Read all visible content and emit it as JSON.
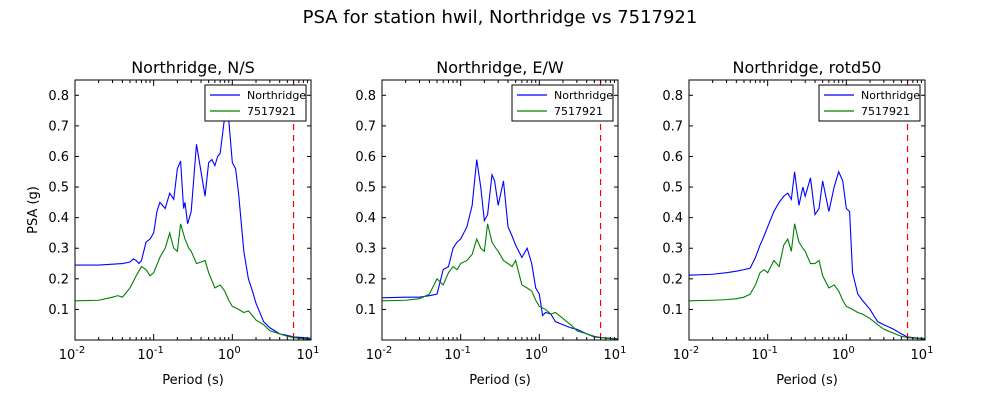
{
  "figure": {
    "suptitle": "PSA for station hwil, Northridge vs 7517921"
  },
  "colors": {
    "northridge": "#0000ff",
    "comparison": "#008000",
    "cutoff": "#ff0000"
  },
  "chart_data": [
    {
      "type": "line",
      "title": "Northridge, N/S",
      "xlabel": "Period (s)",
      "ylabel": "PSA (g)",
      "xscale": "log",
      "xlim": [
        0.01,
        10
      ],
      "ylim": [
        0,
        0.85
      ],
      "yticks": [
        0.1,
        0.2,
        0.3,
        0.4,
        0.5,
        0.6,
        0.7,
        0.8
      ],
      "xtick_labels": [
        "10",
        "10",
        "10",
        "10"
      ],
      "xtick_exponents": [
        "-2",
        "-1",
        "0",
        "1"
      ],
      "legend_position": "upper right",
      "cutoff_period": 6.0,
      "series": [
        {
          "name": "Northridge",
          "color": "#0000ff",
          "x": [
            0.01,
            0.02,
            0.03,
            0.04,
            0.05,
            0.055,
            0.06,
            0.065,
            0.07,
            0.08,
            0.09,
            0.1,
            0.11,
            0.12,
            0.14,
            0.16,
            0.18,
            0.2,
            0.22,
            0.24,
            0.25,
            0.27,
            0.3,
            0.35,
            0.4,
            0.45,
            0.5,
            0.55,
            0.6,
            0.65,
            0.7,
            0.8,
            0.9,
            1.0,
            1.1,
            1.2,
            1.4,
            1.6,
            1.8,
            2.0,
            2.5,
            3.0,
            4.0,
            5.0,
            6.0,
            8.0,
            10.0
          ],
          "y": [
            0.245,
            0.245,
            0.248,
            0.25,
            0.255,
            0.265,
            0.26,
            0.25,
            0.26,
            0.32,
            0.33,
            0.35,
            0.42,
            0.45,
            0.43,
            0.48,
            0.46,
            0.56,
            0.585,
            0.43,
            0.45,
            0.38,
            0.42,
            0.64,
            0.55,
            0.47,
            0.58,
            0.59,
            0.57,
            0.6,
            0.61,
            0.73,
            0.72,
            0.58,
            0.56,
            0.48,
            0.29,
            0.2,
            0.16,
            0.12,
            0.06,
            0.04,
            0.02,
            0.015,
            0.01,
            0.008,
            0.005
          ]
        },
        {
          "name": "7517921",
          "color": "#008000",
          "x": [
            0.01,
            0.02,
            0.03,
            0.035,
            0.04,
            0.05,
            0.06,
            0.07,
            0.08,
            0.09,
            0.1,
            0.12,
            0.14,
            0.16,
            0.18,
            0.2,
            0.22,
            0.25,
            0.28,
            0.3,
            0.35,
            0.4,
            0.45,
            0.5,
            0.6,
            0.7,
            0.8,
            0.9,
            1.0,
            1.2,
            1.4,
            1.6,
            1.8,
            2.0,
            2.5,
            3.0,
            4.0,
            5.0,
            6.0,
            8.0,
            10.0
          ],
          "y": [
            0.128,
            0.13,
            0.14,
            0.145,
            0.14,
            0.17,
            0.21,
            0.24,
            0.23,
            0.21,
            0.22,
            0.27,
            0.3,
            0.35,
            0.3,
            0.29,
            0.38,
            0.33,
            0.3,
            0.29,
            0.25,
            0.255,
            0.26,
            0.22,
            0.17,
            0.18,
            0.16,
            0.13,
            0.11,
            0.1,
            0.09,
            0.095,
            0.08,
            0.065,
            0.05,
            0.03,
            0.02,
            0.012,
            0.008,
            0.004,
            0.003
          ]
        }
      ]
    },
    {
      "type": "line",
      "title": "Northridge, E/W",
      "xlabel": "Period (s)",
      "ylabel": "",
      "xscale": "log",
      "xlim": [
        0.01,
        10
      ],
      "ylim": [
        0,
        0.85
      ],
      "yticks": [
        0.1,
        0.2,
        0.3,
        0.4,
        0.5,
        0.6,
        0.7,
        0.8
      ],
      "xtick_labels": [
        "10",
        "10",
        "10",
        "10"
      ],
      "xtick_exponents": [
        "-2",
        "-1",
        "0",
        "1"
      ],
      "legend_position": "upper right",
      "cutoff_period": 6.0,
      "series": [
        {
          "name": "Northridge",
          "color": "#0000ff",
          "x": [
            0.01,
            0.02,
            0.03,
            0.04,
            0.05,
            0.06,
            0.07,
            0.08,
            0.09,
            0.1,
            0.12,
            0.14,
            0.16,
            0.18,
            0.2,
            0.22,
            0.25,
            0.27,
            0.3,
            0.35,
            0.4,
            0.45,
            0.5,
            0.6,
            0.7,
            0.8,
            0.9,
            1.0,
            1.1,
            1.2,
            1.4,
            1.6,
            2.0,
            2.5,
            3.0,
            4.0,
            5.0,
            6.0,
            8.0,
            10.0
          ],
          "y": [
            0.138,
            0.14,
            0.14,
            0.145,
            0.15,
            0.23,
            0.24,
            0.3,
            0.32,
            0.33,
            0.37,
            0.44,
            0.59,
            0.5,
            0.39,
            0.41,
            0.54,
            0.52,
            0.44,
            0.52,
            0.37,
            0.34,
            0.31,
            0.27,
            0.3,
            0.25,
            0.17,
            0.15,
            0.08,
            0.09,
            0.085,
            0.06,
            0.05,
            0.04,
            0.035,
            0.02,
            0.01,
            0.008,
            0.005,
            0.004
          ]
        },
        {
          "name": "7517921",
          "color": "#008000",
          "x": [
            0.01,
            0.02,
            0.03,
            0.04,
            0.05,
            0.06,
            0.07,
            0.08,
            0.09,
            0.1,
            0.12,
            0.14,
            0.16,
            0.18,
            0.2,
            0.22,
            0.25,
            0.28,
            0.3,
            0.35,
            0.4,
            0.45,
            0.5,
            0.6,
            0.7,
            0.8,
            0.9,
            1.0,
            1.2,
            1.4,
            1.6,
            2.0,
            2.5,
            3.0,
            4.0,
            5.0,
            6.0,
            8.0,
            10.0
          ],
          "y": [
            0.128,
            0.13,
            0.135,
            0.15,
            0.2,
            0.18,
            0.22,
            0.24,
            0.23,
            0.25,
            0.26,
            0.28,
            0.33,
            0.3,
            0.29,
            0.38,
            0.32,
            0.3,
            0.29,
            0.26,
            0.25,
            0.24,
            0.26,
            0.18,
            0.17,
            0.16,
            0.13,
            0.11,
            0.1,
            0.085,
            0.09,
            0.07,
            0.05,
            0.03,
            0.02,
            0.012,
            0.008,
            0.005,
            0.003
          ]
        }
      ]
    },
    {
      "type": "line",
      "title": "Northridge, rotd50",
      "xlabel": "Period (s)",
      "ylabel": "",
      "xscale": "log",
      "xlim": [
        0.01,
        10
      ],
      "ylim": [
        0,
        0.85
      ],
      "yticks": [
        0.1,
        0.2,
        0.3,
        0.4,
        0.5,
        0.6,
        0.7,
        0.8
      ],
      "xtick_labels": [
        "10",
        "10",
        "10",
        "10"
      ],
      "xtick_exponents": [
        "-2",
        "-1",
        "0",
        "1"
      ],
      "legend_position": "upper right",
      "cutoff_period": 6.0,
      "series": [
        {
          "name": "Northridge",
          "color": "#0000ff",
          "x": [
            0.01,
            0.02,
            0.03,
            0.04,
            0.05,
            0.06,
            0.07,
            0.08,
            0.09,
            0.1,
            0.12,
            0.14,
            0.16,
            0.18,
            0.2,
            0.22,
            0.25,
            0.28,
            0.3,
            0.35,
            0.4,
            0.45,
            0.5,
            0.6,
            0.7,
            0.8,
            0.9,
            1.0,
            1.1,
            1.2,
            1.4,
            1.6,
            2.0,
            2.5,
            3.0,
            4.0,
            5.0,
            6.0,
            8.0,
            10.0
          ],
          "y": [
            0.212,
            0.215,
            0.22,
            0.225,
            0.23,
            0.235,
            0.27,
            0.31,
            0.34,
            0.37,
            0.42,
            0.45,
            0.47,
            0.48,
            0.46,
            0.55,
            0.44,
            0.5,
            0.47,
            0.53,
            0.41,
            0.43,
            0.52,
            0.42,
            0.5,
            0.55,
            0.52,
            0.43,
            0.42,
            0.22,
            0.15,
            0.13,
            0.1,
            0.06,
            0.05,
            0.035,
            0.02,
            0.01,
            0.006,
            0.005
          ]
        },
        {
          "name": "7517921",
          "color": "#008000",
          "x": [
            0.01,
            0.02,
            0.03,
            0.04,
            0.05,
            0.06,
            0.07,
            0.08,
            0.09,
            0.1,
            0.12,
            0.14,
            0.16,
            0.18,
            0.2,
            0.22,
            0.25,
            0.28,
            0.3,
            0.35,
            0.4,
            0.45,
            0.5,
            0.6,
            0.7,
            0.8,
            0.9,
            1.0,
            1.2,
            1.4,
            1.6,
            2.0,
            2.5,
            3.0,
            4.0,
            5.0,
            6.0,
            8.0,
            10.0
          ],
          "y": [
            0.128,
            0.13,
            0.132,
            0.135,
            0.14,
            0.15,
            0.18,
            0.22,
            0.23,
            0.22,
            0.26,
            0.24,
            0.31,
            0.33,
            0.29,
            0.38,
            0.32,
            0.3,
            0.29,
            0.25,
            0.25,
            0.26,
            0.21,
            0.17,
            0.18,
            0.16,
            0.13,
            0.11,
            0.1,
            0.09,
            0.085,
            0.07,
            0.05,
            0.035,
            0.022,
            0.012,
            0.008,
            0.005,
            0.003
          ]
        }
      ]
    }
  ]
}
